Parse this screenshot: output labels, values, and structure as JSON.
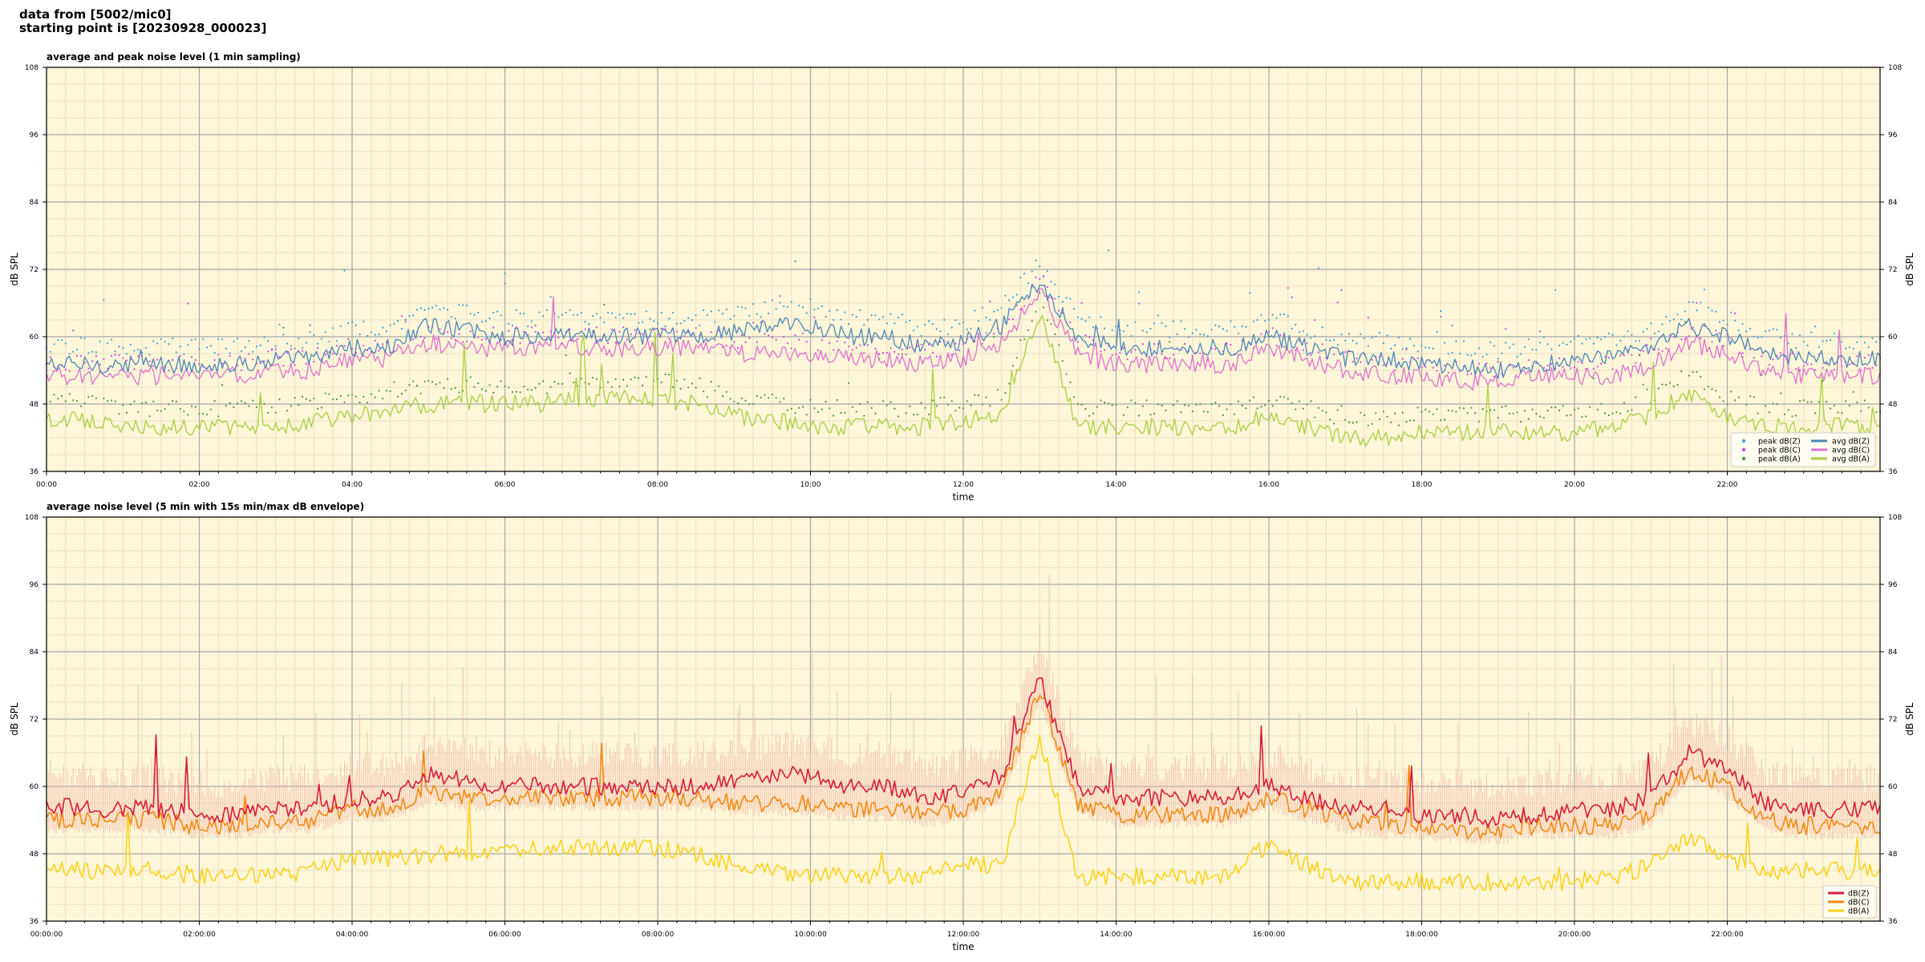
{
  "header": {
    "line1": "data from [5002/mic0]",
    "line2": "starting point is [20230928_000023]"
  },
  "colors": {
    "plot_bg": "#fdf6d8",
    "peak_z": "#3fa3d6",
    "peak_c": "#e040e0",
    "peak_a": "#4a9a3a",
    "avg_z": "#4f86b8",
    "avg_c": "#e070d0",
    "avg_a": "#a8d040",
    "dbz": "#d81b3c",
    "dbc": "#f28a12",
    "dba": "#ffd21c",
    "envelope": "#f4b0a0"
  },
  "chart_data": [
    {
      "type": "line",
      "title": "average and peak noise level (1 min sampling)",
      "xlabel": "time",
      "ylabel": "dB SPL",
      "ylabel_right": "dB SPL",
      "ylim": [
        36,
        108
      ],
      "yticks": [
        "36",
        "48",
        "60",
        "72",
        "84",
        "96",
        "108"
      ],
      "xlim_hours": [
        0,
        24
      ],
      "xticks": [
        "00:00",
        "02:00",
        "04:00",
        "06:00",
        "08:00",
        "10:00",
        "12:00",
        "14:00",
        "16:00",
        "18:00",
        "20:00",
        "22:00"
      ],
      "grid": true,
      "legend": "bottom-right",
      "legend_entries": [
        {
          "label": "peak dB(Z)",
          "kind": "dot",
          "color": "#3fa3d6"
        },
        {
          "label": "peak dB(C)",
          "kind": "dot",
          "color": "#e040e0"
        },
        {
          "label": "peak dB(A)",
          "kind": "dot",
          "color": "#4a9a3a"
        },
        {
          "label": "avg dB(Z)",
          "kind": "line",
          "color": "#4f86b8"
        },
        {
          "label": "avg dB(C)",
          "kind": "line",
          "color": "#e070d0"
        },
        {
          "label": "avg dB(A)",
          "kind": "line",
          "color": "#a8d040"
        }
      ],
      "series": [
        {
          "name": "avg dB(Z)",
          "color": "#4f86b8",
          "x": [
            0,
            0.5,
            1,
            1.5,
            2,
            2.5,
            3,
            3.5,
            4,
            4.5,
            5,
            5.5,
            6,
            6.5,
            7,
            7.5,
            8,
            8.5,
            9,
            9.5,
            10,
            10.5,
            11,
            11.5,
            12,
            12.5,
            13,
            13.5,
            14,
            14.5,
            15,
            15.5,
            16,
            16.5,
            17,
            17.5,
            18,
            18.5,
            19,
            19.5,
            20,
            20.5,
            21,
            21.5,
            22,
            22.5,
            23,
            23.5,
            24
          ],
          "y": [
            55,
            55,
            55,
            55,
            55,
            55,
            56,
            56,
            58,
            58,
            62,
            61,
            60,
            60,
            60,
            60,
            60,
            60,
            61,
            62,
            62,
            60,
            60,
            58,
            59,
            62,
            70,
            60,
            58,
            58,
            58,
            58,
            60,
            58,
            56,
            56,
            55,
            55,
            54,
            55,
            56,
            56,
            58,
            62,
            60,
            57,
            56,
            56,
            56
          ]
        },
        {
          "name": "avg dB(C)",
          "color": "#e070d0",
          "x": [
            0,
            0.5,
            1,
            1.5,
            2,
            2.5,
            3,
            3.5,
            4,
            4.5,
            5,
            5.5,
            6,
            6.5,
            7,
            7.5,
            8,
            8.5,
            9,
            9.5,
            10,
            10.5,
            11,
            11.5,
            12,
            12.5,
            13,
            13.5,
            14,
            14.5,
            15,
            15.5,
            16,
            16.5,
            17,
            17.5,
            18,
            18.5,
            19,
            19.5,
            20,
            20.5,
            21,
            21.5,
            22,
            22.5,
            23,
            23.5,
            24
          ],
          "y": [
            53,
            53,
            53,
            53,
            53,
            53,
            54,
            54,
            56,
            56,
            59,
            58,
            58,
            58,
            58,
            58,
            58,
            58,
            57,
            57,
            57,
            56,
            56,
            55,
            56,
            59,
            68,
            57,
            55,
            55,
            55,
            55,
            58,
            56,
            54,
            53,
            53,
            52,
            52,
            53,
            53,
            53,
            55,
            59,
            57,
            54,
            53,
            53,
            53
          ]
        },
        {
          "name": "avg dB(A)",
          "color": "#a8d040",
          "x": [
            0,
            0.5,
            1,
            1.5,
            2,
            2.5,
            3,
            3.5,
            4,
            4.5,
            5,
            5.5,
            6,
            6.5,
            7,
            7.5,
            8,
            8.5,
            9,
            9.5,
            10,
            10.5,
            11,
            11.5,
            12,
            12.5,
            13,
            13.5,
            14,
            14.5,
            15,
            15.5,
            16,
            16.5,
            17,
            17.5,
            18,
            18.5,
            19,
            19.5,
            20,
            20.5,
            21,
            21.5,
            22,
            22.5,
            23,
            23.5,
            24
          ],
          "y": [
            45,
            45,
            44,
            44,
            44,
            44,
            44,
            45,
            46,
            47,
            48,
            48,
            48,
            48,
            49,
            49,
            49,
            48,
            46,
            45,
            44,
            44,
            44,
            44,
            45,
            46,
            64,
            44,
            44,
            44,
            44,
            44,
            46,
            44,
            42,
            42,
            43,
            43,
            43,
            43,
            43,
            44,
            46,
            50,
            46,
            44,
            44,
            44,
            44
          ]
        }
      ],
      "peak_series": [
        {
          "name": "peak dB(Z)",
          "color": "#3fa3d6",
          "offset_db": 3
        },
        {
          "name": "peak dB(C)",
          "color": "#e040e0",
          "offset_db": 2
        },
        {
          "name": "peak dB(A)",
          "color": "#4a9a3a",
          "offset_db": 3
        }
      ]
    },
    {
      "type": "line",
      "title": "average noise level (5 min with 15s min/max dB envelope)",
      "xlabel": "time",
      "ylabel": "dB SPL",
      "ylabel_right": "dB SPL",
      "ylim": [
        36,
        108
      ],
      "yticks": [
        "36",
        "48",
        "60",
        "72",
        "84",
        "96",
        "108"
      ],
      "xlim_hours": [
        0,
        24
      ],
      "xticks": [
        "00:00:00",
        "02:00:00",
        "04:00:00",
        "06:00:00",
        "08:00:00",
        "10:00:00",
        "12:00:00",
        "14:00:00",
        "16:00:00",
        "18:00:00",
        "20:00:00",
        "22:00:00"
      ],
      "grid": true,
      "legend": "bottom-right",
      "legend_entries": [
        {
          "label": "dB(Z)",
          "kind": "line",
          "color": "#d81b3c"
        },
        {
          "label": "dB(C)",
          "kind": "line",
          "color": "#f28a12"
        },
        {
          "label": "dB(A)",
          "kind": "line",
          "color": "#ffd21c"
        }
      ],
      "series": [
        {
          "name": "dB(Z)",
          "color": "#d81b3c",
          "x": [
            0,
            0.5,
            1,
            1.5,
            2,
            2.5,
            3,
            3.5,
            4,
            4.5,
            5,
            5.5,
            6,
            6.5,
            7,
            7.5,
            8,
            8.5,
            9,
            9.5,
            10,
            10.5,
            11,
            11.5,
            12,
            12.5,
            13,
            13.5,
            14,
            14.5,
            15,
            15.5,
            16,
            16.5,
            17,
            17.5,
            18,
            18.5,
            19,
            19.5,
            20,
            20.5,
            21,
            21.5,
            22,
            22.5,
            23,
            23.5,
            24
          ],
          "y": [
            57,
            56,
            56,
            56,
            55,
            55,
            56,
            56,
            58,
            58,
            62,
            61,
            60,
            60,
            60,
            60,
            60,
            60,
            61,
            62,
            62,
            60,
            60,
            58,
            59,
            62,
            79,
            60,
            58,
            58,
            58,
            58,
            60,
            58,
            56,
            56,
            55,
            55,
            54,
            55,
            56,
            56,
            58,
            66,
            63,
            57,
            56,
            56,
            56
          ]
        },
        {
          "name": "dB(C)",
          "color": "#f28a12",
          "x": [
            0,
            0.5,
            1,
            1.5,
            2,
            2.5,
            3,
            3.5,
            4,
            4.5,
            5,
            5.5,
            6,
            6.5,
            7,
            7.5,
            8,
            8.5,
            9,
            9.5,
            10,
            10.5,
            11,
            11.5,
            12,
            12.5,
            13,
            13.5,
            14,
            14.5,
            15,
            15.5,
            16,
            16.5,
            17,
            17.5,
            18,
            18.5,
            19,
            19.5,
            20,
            20.5,
            21,
            21.5,
            22,
            22.5,
            23,
            23.5,
            24
          ],
          "y": [
            54,
            54,
            54,
            54,
            53,
            53,
            54,
            54,
            56,
            56,
            59,
            58,
            58,
            58,
            58,
            58,
            58,
            58,
            57,
            57,
            57,
            56,
            56,
            55,
            56,
            59,
            77,
            57,
            55,
            55,
            55,
            55,
            58,
            56,
            54,
            53,
            53,
            52,
            52,
            53,
            53,
            53,
            55,
            63,
            60,
            54,
            53,
            53,
            53
          ]
        },
        {
          "name": "dB(A)",
          "color": "#ffd21c",
          "x": [
            0,
            0.5,
            1,
            1.5,
            2,
            2.5,
            3,
            3.5,
            4,
            4.5,
            5,
            5.5,
            6,
            6.5,
            7,
            7.5,
            8,
            8.5,
            9,
            9.5,
            10,
            10.5,
            11,
            11.5,
            12,
            12.5,
            13,
            13.5,
            14,
            14.5,
            15,
            15.5,
            16,
            16.5,
            17,
            17.5,
            18,
            18.5,
            19,
            19.5,
            20,
            20.5,
            21,
            21.5,
            22,
            22.5,
            23,
            23.5,
            24
          ],
          "y": [
            45,
            45,
            45,
            45,
            44,
            44,
            44,
            45,
            47,
            47,
            48,
            48,
            49,
            49,
            49,
            49,
            49,
            48,
            46,
            45,
            44,
            44,
            44,
            44,
            46,
            46,
            69,
            44,
            44,
            44,
            44,
            44,
            50,
            46,
            43,
            43,
            43,
            43,
            43,
            43,
            43,
            44,
            46,
            51,
            47,
            45,
            45,
            45,
            45
          ]
        }
      ],
      "envelope": {
        "name": "min/max envelope",
        "color": "#f4b0a0",
        "spread_db": 3
      }
    }
  ]
}
